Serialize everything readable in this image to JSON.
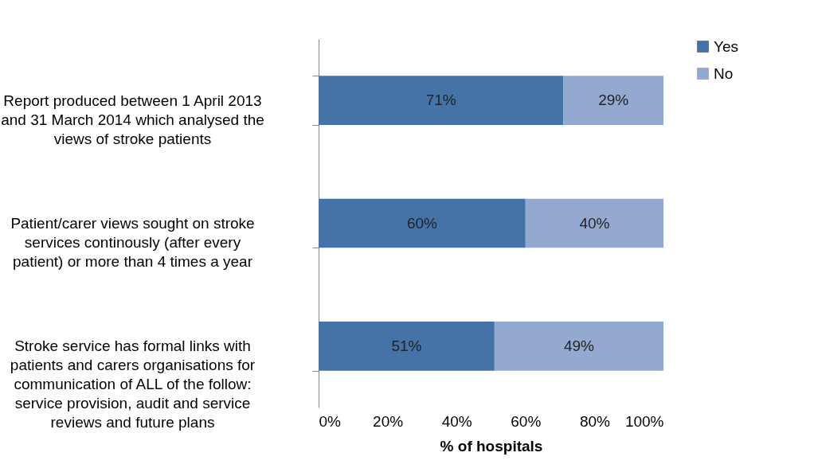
{
  "chart_data": {
    "type": "bar",
    "orientation": "horizontal",
    "stacked": true,
    "categories": [
      "Report produced between 1 April 2013 and 31 March 2014 which analysed the views of stroke patients",
      "Patient/carer views sought on stroke services continously (after every patient) or more than 4 times a year",
      "Stroke service has formal links with patients and carers organisations for communication of ALL of the follow: service provision, audit and service reviews and future plans"
    ],
    "series": [
      {
        "name": "Yes",
        "color": "#4572a7",
        "values": [
          71,
          60,
          51
        ],
        "value_labels": [
          "71%",
          "60%",
          "51%"
        ]
      },
      {
        "name": "No",
        "color": "#93a9cf",
        "values": [
          29,
          40,
          49
        ],
        "value_labels": [
          "29%",
          "40%",
          "49%"
        ]
      }
    ],
    "xlabel": "% of hospitals",
    "xlim": [
      0,
      100
    ],
    "xticks": [
      {
        "value": 0,
        "label": "0%"
      },
      {
        "value": 20,
        "label": "20%"
      },
      {
        "value": 40,
        "label": "40%"
      },
      {
        "value": 60,
        "label": "60%"
      },
      {
        "value": 80,
        "label": "80%"
      },
      {
        "value": 100,
        "label": "100%"
      }
    ],
    "legend": "right",
    "grid": false
  }
}
